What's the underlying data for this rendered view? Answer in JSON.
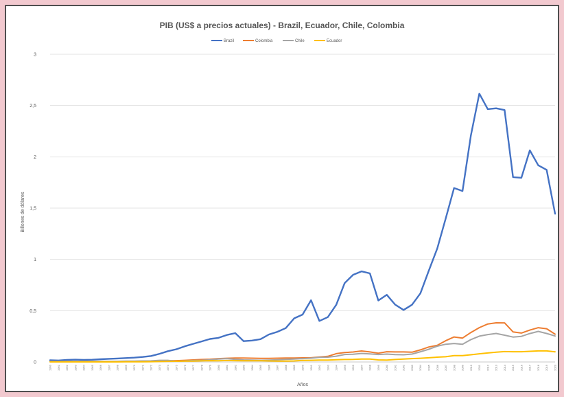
{
  "chart_data": {
    "type": "line",
    "title": "PIB (US$ a precios actuales) - Brazil, Ecuador, Chile, Colombia",
    "xlabel": "Años",
    "ylabel": "Billones de dólares",
    "ylim": [
      0,
      3
    ],
    "yticks": [
      0,
      0.5,
      1,
      1.5,
      2,
      2.5,
      3
    ],
    "ytick_labels": [
      "0",
      "0,5",
      "1",
      "1,5",
      "2",
      "2,5",
      "3"
    ],
    "grid": true,
    "legend_position": "top-center",
    "x": [
      1960,
      1961,
      1962,
      1963,
      1964,
      1965,
      1966,
      1967,
      1968,
      1969,
      1970,
      1971,
      1972,
      1973,
      1974,
      1975,
      1976,
      1977,
      1978,
      1979,
      1980,
      1981,
      1982,
      1983,
      1984,
      1985,
      1986,
      1987,
      1988,
      1989,
      1990,
      1991,
      1992,
      1993,
      1994,
      1995,
      1996,
      1997,
      1998,
      1999,
      2000,
      2001,
      2002,
      2003,
      2004,
      2005,
      2006,
      2007,
      2008,
      2009,
      2010,
      2011,
      2012,
      2013,
      2014,
      2015,
      2016,
      2017,
      2018,
      2019,
      2020
    ],
    "series": [
      {
        "name": "Brazil",
        "color": "#4472c4",
        "values": [
          0.017,
          0.015,
          0.02,
          0.023,
          0.021,
          0.022,
          0.027,
          0.031,
          0.034,
          0.038,
          0.042,
          0.049,
          0.058,
          0.08,
          0.105,
          0.124,
          0.153,
          0.177,
          0.2,
          0.224,
          0.235,
          0.263,
          0.281,
          0.203,
          0.209,
          0.222,
          0.268,
          0.294,
          0.33,
          0.425,
          0.462,
          0.602,
          0.4,
          0.437,
          0.558,
          0.769,
          0.85,
          0.883,
          0.864,
          0.599,
          0.655,
          0.559,
          0.507,
          0.558,
          0.669,
          0.891,
          1.107,
          1.397,
          1.696,
          1.667,
          2.209,
          2.616,
          2.465,
          2.473,
          2.456,
          1.802,
          1.796,
          2.063,
          1.917,
          1.873,
          1.445
        ]
      },
      {
        "name": "Colombia",
        "color": "#ed7d31",
        "values": [
          0.004,
          0.004,
          0.005,
          0.005,
          0.006,
          0.006,
          0.006,
          0.006,
          0.006,
          0.007,
          0.007,
          0.008,
          0.009,
          0.01,
          0.013,
          0.013,
          0.016,
          0.02,
          0.024,
          0.027,
          0.033,
          0.036,
          0.038,
          0.038,
          0.037,
          0.035,
          0.035,
          0.037,
          0.039,
          0.039,
          0.04,
          0.041,
          0.049,
          0.055,
          0.081,
          0.092,
          0.097,
          0.107,
          0.098,
          0.086,
          0.1,
          0.098,
          0.098,
          0.095,
          0.118,
          0.146,
          0.163,
          0.207,
          0.244,
          0.233,
          0.287,
          0.335,
          0.37,
          0.382,
          0.381,
          0.293,
          0.282,
          0.311,
          0.334,
          0.324,
          0.271
        ]
      },
      {
        "name": "Chile",
        "color": "#a5a5a5",
        "values": [
          0.004,
          0.005,
          0.005,
          0.006,
          0.006,
          0.006,
          0.007,
          0.007,
          0.007,
          0.008,
          0.009,
          0.01,
          0.011,
          0.016,
          0.016,
          0.007,
          0.01,
          0.014,
          0.016,
          0.021,
          0.029,
          0.033,
          0.025,
          0.02,
          0.019,
          0.017,
          0.018,
          0.021,
          0.025,
          0.029,
          0.033,
          0.037,
          0.045,
          0.047,
          0.056,
          0.073,
          0.076,
          0.083,
          0.079,
          0.073,
          0.077,
          0.072,
          0.07,
          0.077,
          0.1,
          0.124,
          0.154,
          0.173,
          0.18,
          0.172,
          0.218,
          0.252,
          0.267,
          0.278,
          0.261,
          0.243,
          0.25,
          0.277,
          0.298,
          0.278,
          0.253
        ]
      },
      {
        "name": "Ecuador",
        "color": "#ffc000",
        "values": [
          0.001,
          0.001,
          0.001,
          0.001,
          0.001,
          0.001,
          0.001,
          0.001,
          0.001,
          0.002,
          0.002,
          0.002,
          0.003,
          0.004,
          0.006,
          0.007,
          0.008,
          0.009,
          0.011,
          0.013,
          0.012,
          0.014,
          0.013,
          0.012,
          0.012,
          0.012,
          0.01,
          0.009,
          0.009,
          0.01,
          0.015,
          0.016,
          0.018,
          0.019,
          0.022,
          0.024,
          0.025,
          0.028,
          0.028,
          0.02,
          0.018,
          0.024,
          0.029,
          0.033,
          0.036,
          0.041,
          0.047,
          0.051,
          0.062,
          0.062,
          0.07,
          0.08,
          0.088,
          0.095,
          0.101,
          0.1,
          0.1,
          0.104,
          0.108,
          0.108,
          0.099
        ]
      }
    ]
  }
}
